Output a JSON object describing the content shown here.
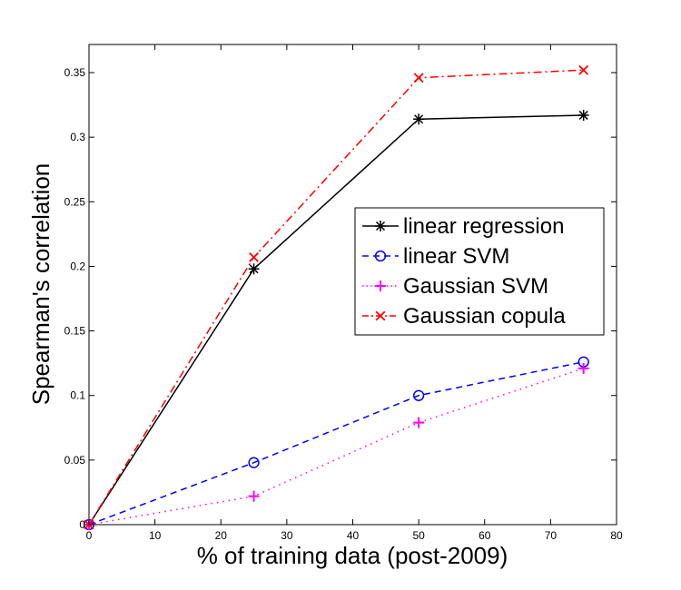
{
  "chart_data": {
    "type": "line",
    "title": "",
    "xlabel": "% of training data (post-2009)",
    "ylabel": "Spearman's correlation",
    "xlim": [
      0,
      80
    ],
    "ylim": [
      0,
      0.37
    ],
    "xticks": [
      0,
      10,
      20,
      30,
      40,
      50,
      60,
      70,
      80
    ],
    "xtick_labels": [
      "0",
      "10",
      "20",
      "30",
      "40",
      "50",
      "60",
      "70",
      "80"
    ],
    "yticks": [
      0,
      0.05,
      0.1,
      0.15,
      0.2,
      0.25,
      0.3,
      0.35
    ],
    "ytick_labels": [
      "0",
      "0.05",
      "0.1",
      "0.15",
      "0.2",
      "0.25",
      "0.3",
      "0.35"
    ],
    "grid": false,
    "legend_position": "center-right",
    "x": [
      0,
      25,
      50,
      75
    ],
    "series": [
      {
        "name": "linear regression",
        "values": [
          0,
          0.198,
          0.314,
          0.317
        ],
        "color": "#000000",
        "line_style": "solid",
        "marker": "asterisk"
      },
      {
        "name": "linear SVM",
        "values": [
          0,
          0.048,
          0.1,
          0.126
        ],
        "color": "#0000ff",
        "line_style": "dashed",
        "marker": "circle"
      },
      {
        "name": "Gaussian SVM",
        "values": [
          0,
          0.022,
          0.079,
          0.121
        ],
        "color": "#ff00ff",
        "line_style": "dotted",
        "marker": "plus"
      },
      {
        "name": "Gaussian copula",
        "values": [
          0,
          0.207,
          0.346,
          0.352
        ],
        "color": "#ff0000",
        "line_style": "dashdot",
        "marker": "cross"
      }
    ]
  }
}
